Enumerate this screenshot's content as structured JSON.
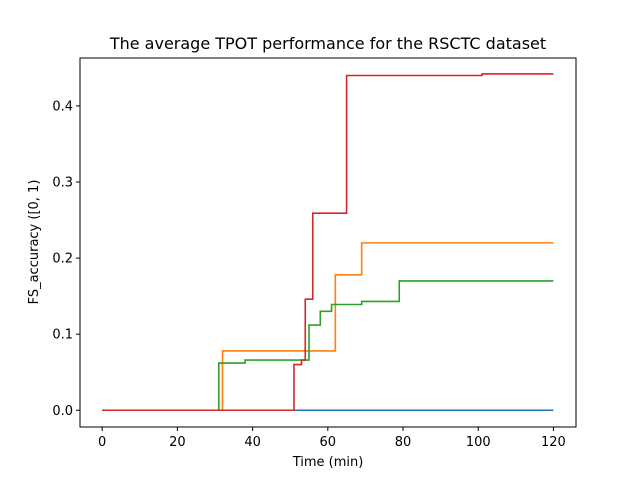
{
  "chart_data": {
    "type": "line",
    "step": "post",
    "title": "The average TPOT performance for the RSCTC dataset",
    "xlabel": "Time (min)",
    "ylabel": "FS_accuracy ([0, 1)",
    "xlim": [
      -5.9,
      126
    ],
    "ylim": [
      -0.022,
      0.463
    ],
    "xticks": [
      0,
      20,
      40,
      60,
      80,
      100,
      120
    ],
    "xtick_labels": [
      "0",
      "20",
      "40",
      "60",
      "80",
      "100",
      "120"
    ],
    "yticks": [
      0.0,
      0.1,
      0.2,
      0.3,
      0.4
    ],
    "ytick_labels": [
      "0.0",
      "0.1",
      "0.2",
      "0.3",
      "0.4"
    ],
    "grid": false,
    "series": [
      {
        "color": "#1f77b4",
        "x": [
          0,
          120
        ],
        "y": [
          0.0,
          0.0
        ]
      },
      {
        "color": "#ff7f0e",
        "x": [
          0,
          32,
          62,
          69,
          120
        ],
        "y": [
          0.0,
          0.078,
          0.178,
          0.22,
          0.22
        ]
      },
      {
        "color": "#2ca02c",
        "x": [
          0,
          31,
          38,
          55,
          58,
          61,
          69,
          79,
          120
        ],
        "y": [
          0.0,
          0.062,
          0.066,
          0.112,
          0.13,
          0.139,
          0.143,
          0.17,
          0.17
        ]
      },
      {
        "color": "#d62728",
        "x": [
          0,
          51,
          53,
          54,
          56,
          65,
          101,
          120
        ],
        "y": [
          0.0,
          0.06,
          0.066,
          0.146,
          0.259,
          0.44,
          0.442,
          0.442
        ]
      }
    ]
  }
}
